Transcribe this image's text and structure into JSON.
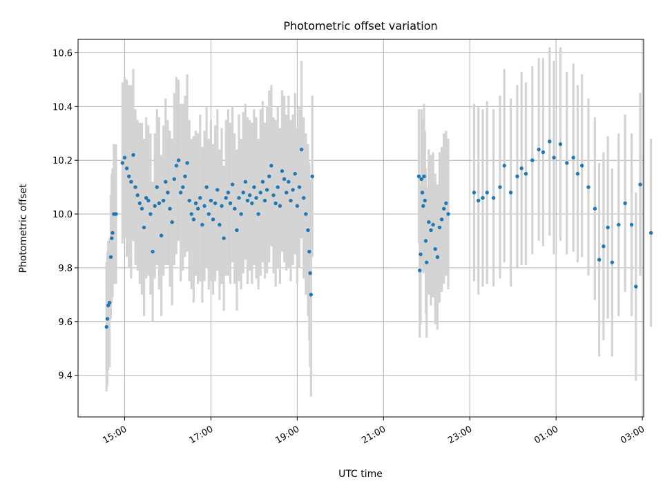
{
  "chart_data": {
    "type": "scatter",
    "title": "Photometric offset variation",
    "xlabel": "UTC time",
    "ylabel": "Photometric offset",
    "x_unit": "hours since 00:00 on the first night (ticks wrap past 24:00)",
    "xlim": [
      13.92,
      27.03
    ],
    "ylim": [
      9.245,
      10.65
    ],
    "x_ticks": [
      {
        "value": 15,
        "label": "15:00"
      },
      {
        "value": 17,
        "label": "17:00"
      },
      {
        "value": 19,
        "label": "19:00"
      },
      {
        "value": 21,
        "label": "21:00"
      },
      {
        "value": 23,
        "label": "23:00"
      },
      {
        "value": 25,
        "label": "01:00"
      },
      {
        "value": 27,
        "label": "03:00"
      }
    ],
    "y_ticks": [
      {
        "value": 9.4,
        "label": "9.4"
      },
      {
        "value": 9.6,
        "label": "9.6"
      },
      {
        "value": 9.8,
        "label": "9.8"
      },
      {
        "value": 10.0,
        "label": "10.0"
      },
      {
        "value": 10.2,
        "label": "10.2"
      },
      {
        "value": 10.4,
        "label": "10.4"
      },
      {
        "value": 10.6,
        "label": "10.6"
      }
    ],
    "grid": true,
    "point_color": "#1f77b4",
    "errorbar_color": "#d3d3d3",
    "series": [
      {
        "points": [
          [
            14.58,
            9.58,
            0.24
          ],
          [
            14.6,
            9.61,
            0.25
          ],
          [
            14.62,
            9.66,
            0.24
          ],
          [
            14.65,
            9.67,
            0.24
          ],
          [
            14.68,
            9.84,
            0.23
          ],
          [
            14.7,
            9.91,
            0.24
          ],
          [
            14.72,
            9.93,
            0.24
          ],
          [
            14.75,
            10.0,
            0.26
          ],
          [
            14.8,
            10.0,
            0.26
          ],
          [
            14.95,
            10.19,
            0.3
          ],
          [
            15.0,
            10.21,
            0.3
          ],
          [
            15.05,
            10.17,
            0.33
          ],
          [
            15.1,
            10.14,
            0.34
          ],
          [
            15.15,
            10.12,
            0.36
          ],
          [
            15.2,
            10.22,
            0.32
          ],
          [
            15.25,
            10.1,
            0.29
          ],
          [
            15.3,
            10.07,
            0.28
          ],
          [
            15.35,
            10.04,
            0.3
          ],
          [
            15.4,
            10.02,
            0.32
          ],
          [
            15.45,
            9.95,
            0.33
          ],
          [
            15.5,
            10.06,
            0.3
          ],
          [
            15.55,
            10.05,
            0.28
          ],
          [
            15.6,
            10.0,
            0.3
          ],
          [
            15.65,
            9.86,
            0.26
          ],
          [
            15.7,
            10.03,
            0.27
          ],
          [
            15.75,
            10.1,
            0.29
          ],
          [
            15.8,
            10.04,
            0.32
          ],
          [
            15.85,
            9.92,
            0.3
          ],
          [
            15.9,
            10.05,
            0.28
          ],
          [
            15.95,
            10.12,
            0.31
          ],
          [
            16.0,
            10.08,
            0.27
          ],
          [
            16.05,
            10.02,
            0.29
          ],
          [
            16.1,
            9.97,
            0.31
          ],
          [
            16.15,
            10.13,
            0.32
          ],
          [
            16.2,
            10.18,
            0.33
          ],
          [
            16.25,
            10.2,
            0.3
          ],
          [
            16.3,
            10.08,
            0.33
          ],
          [
            16.35,
            10.1,
            0.31
          ],
          [
            16.4,
            10.14,
            0.3
          ],
          [
            16.45,
            10.19,
            0.33
          ],
          [
            16.5,
            10.05,
            0.3
          ],
          [
            16.55,
            10.0,
            0.28
          ],
          [
            16.6,
            9.98,
            0.31
          ],
          [
            16.65,
            10.04,
            0.27
          ],
          [
            16.7,
            10.02,
            0.28
          ],
          [
            16.75,
            10.06,
            0.31
          ],
          [
            16.8,
            9.96,
            0.29
          ],
          [
            16.85,
            10.03,
            0.28
          ],
          [
            16.9,
            10.1,
            0.3
          ],
          [
            16.95,
            10.0,
            0.28
          ],
          [
            17.0,
            10.05,
            0.3
          ],
          [
            17.05,
            9.98,
            0.28
          ],
          [
            17.1,
            10.04,
            0.29
          ],
          [
            17.15,
            10.09,
            0.3
          ],
          [
            17.2,
            9.96,
            0.28
          ],
          [
            17.25,
            10.03,
            0.29
          ],
          [
            17.3,
            9.91,
            0.27
          ],
          [
            17.35,
            10.06,
            0.29
          ],
          [
            17.4,
            10.08,
            0.31
          ],
          [
            17.45,
            10.04,
            0.3
          ],
          [
            17.5,
            10.11,
            0.29
          ],
          [
            17.55,
            10.02,
            0.28
          ],
          [
            17.6,
            9.94,
            0.3
          ],
          [
            17.65,
            10.06,
            0.31
          ],
          [
            17.7,
            10.0,
            0.28
          ],
          [
            17.75,
            10.08,
            0.3
          ],
          [
            17.8,
            10.12,
            0.29
          ],
          [
            17.85,
            10.05,
            0.31
          ],
          [
            17.9,
            10.07,
            0.28
          ],
          [
            17.95,
            10.04,
            0.3
          ],
          [
            18.0,
            10.1,
            0.29
          ],
          [
            18.05,
            10.06,
            0.3
          ],
          [
            18.1,
            10.0,
            0.28
          ],
          [
            18.15,
            10.08,
            0.31
          ],
          [
            18.2,
            10.12,
            0.3
          ],
          [
            18.25,
            10.05,
            0.29
          ],
          [
            18.3,
            10.09,
            0.31
          ],
          [
            18.35,
            10.14,
            0.32
          ],
          [
            18.4,
            10.18,
            0.3
          ],
          [
            18.45,
            10.07,
            0.29
          ],
          [
            18.5,
            10.04,
            0.31
          ],
          [
            18.55,
            10.1,
            0.3
          ],
          [
            18.6,
            10.03,
            0.29
          ],
          [
            18.65,
            10.16,
            0.3
          ],
          [
            18.7,
            10.13,
            0.31
          ],
          [
            18.75,
            10.08,
            0.29
          ],
          [
            18.8,
            10.12,
            0.32
          ],
          [
            18.85,
            10.05,
            0.3
          ],
          [
            18.9,
            10.09,
            0.28
          ],
          [
            18.95,
            10.15,
            0.3
          ],
          [
            19.0,
            10.03,
            0.29
          ],
          [
            19.05,
            10.1,
            0.3
          ],
          [
            19.1,
            10.24,
            0.33
          ],
          [
            19.15,
            10.06,
            0.3
          ],
          [
            19.2,
            10.0,
            0.3
          ],
          [
            19.25,
            9.94,
            0.32
          ],
          [
            19.28,
            9.86,
            0.33
          ],
          [
            19.3,
            9.78,
            0.35
          ],
          [
            19.32,
            9.7,
            0.38
          ],
          [
            19.35,
            10.14,
            0.3
          ]
        ]
      },
      {
        "points": [
          [
            21.82,
            10.14,
            0.25
          ],
          [
            21.84,
            9.79,
            0.25
          ],
          [
            21.86,
            9.85,
            0.26
          ],
          [
            21.88,
            10.13,
            0.26
          ],
          [
            21.9,
            10.08,
            0.27
          ],
          [
            21.92,
            10.03,
            0.25
          ],
          [
            21.94,
            10.14,
            0.27
          ],
          [
            21.96,
            10.05,
            0.26
          ],
          [
            21.98,
            9.9,
            0.27
          ],
          [
            22.0,
            9.82,
            0.28
          ],
          [
            22.05,
            9.97,
            0.27
          ],
          [
            22.1,
            9.94,
            0.28
          ],
          [
            22.15,
            9.96,
            0.27
          ],
          [
            22.2,
            9.87,
            0.28
          ],
          [
            22.25,
            9.84,
            0.27
          ],
          [
            22.3,
            9.95,
            0.28
          ],
          [
            22.35,
            9.98,
            0.27
          ],
          [
            22.4,
            10.02,
            0.28
          ],
          [
            22.45,
            10.04,
            0.27
          ],
          [
            22.5,
            10.0,
            0.28
          ]
        ]
      },
      {
        "points": [
          [
            23.1,
            10.08,
            0.33
          ],
          [
            23.2,
            10.05,
            0.35
          ],
          [
            23.3,
            10.06,
            0.33
          ],
          [
            23.4,
            10.08,
            0.34
          ],
          [
            23.55,
            10.06,
            0.33
          ],
          [
            23.7,
            10.1,
            0.34
          ],
          [
            23.8,
            10.18,
            0.36
          ],
          [
            23.95,
            10.08,
            0.35
          ],
          [
            24.1,
            10.14,
            0.34
          ],
          [
            24.2,
            10.17,
            0.36
          ],
          [
            24.3,
            10.15,
            0.34
          ],
          [
            24.45,
            10.2,
            0.35
          ],
          [
            24.6,
            10.24,
            0.34
          ],
          [
            24.7,
            10.23,
            0.35
          ],
          [
            24.85,
            10.27,
            0.35
          ],
          [
            24.95,
            10.21,
            0.36
          ],
          [
            25.1,
            10.26,
            0.36
          ],
          [
            25.25,
            10.19,
            0.34
          ],
          [
            25.4,
            10.21,
            0.35
          ],
          [
            25.5,
            10.15,
            0.33
          ],
          [
            25.6,
            10.18,
            0.34
          ],
          [
            25.75,
            10.1,
            0.33
          ],
          [
            25.9,
            10.02,
            0.34
          ],
          [
            26.0,
            9.83,
            0.36
          ],
          [
            26.1,
            9.88,
            0.35
          ],
          [
            26.2,
            9.95,
            0.34
          ],
          [
            26.3,
            9.82,
            0.35
          ],
          [
            26.45,
            9.96,
            0.34
          ],
          [
            26.6,
            10.04,
            0.33
          ],
          [
            26.75,
            9.96,
            0.34
          ],
          [
            26.85,
            9.73,
            0.35
          ],
          [
            26.95,
            10.11,
            0.34
          ],
          [
            27.2,
            9.93,
            0.35
          ]
        ]
      }
    ]
  }
}
